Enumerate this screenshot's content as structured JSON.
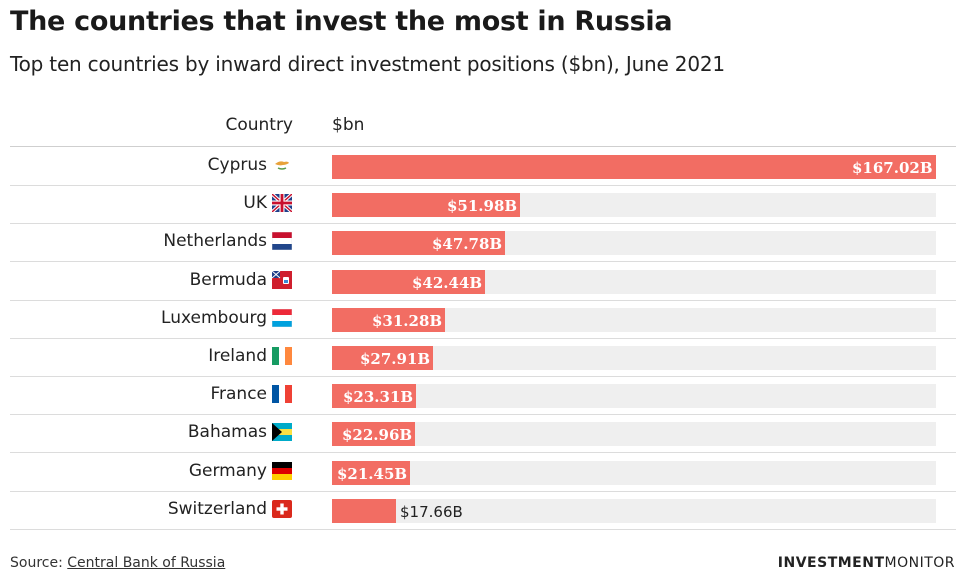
{
  "header": {
    "title": "The countries that invest the most in Russia",
    "subtitle": "Top ten countries by inward direct investment positions ($bn), June 2021",
    "col_country": "Country",
    "col_value": "$bn"
  },
  "footer": {
    "source_prefix": "Source: ",
    "source_link": "Central Bank of Russia",
    "brand_bold": "INVESTMENT",
    "brand_light": "MONITOR"
  },
  "colors": {
    "bar": "#f26d63",
    "track": "#efefef"
  },
  "chart_data": {
    "type": "bar",
    "orientation": "horizontal",
    "title": "The countries that invest the most in Russia",
    "subtitle": "Top ten countries by inward direct investment positions ($bn), June 2021",
    "xlabel": "$bn",
    "ylabel": "Country",
    "xlim": [
      0,
      167.02
    ],
    "grid": false,
    "categories": [
      "Cyprus",
      "UK",
      "Netherlands",
      "Bermuda",
      "Luxembourg",
      "Ireland",
      "France",
      "Bahamas",
      "Germany",
      "Switzerland"
    ],
    "values": [
      167.02,
      51.98,
      47.78,
      42.44,
      31.28,
      27.91,
      23.31,
      22.96,
      21.45,
      17.66
    ],
    "labels": [
      "$167.02B",
      "$51.98B",
      "$47.78B",
      "$42.44B",
      "$31.28B",
      "$27.91B",
      "$23.31B",
      "$22.96B",
      "$21.45B",
      "$17.66B"
    ],
    "flags": [
      "cyprus-flag-icon",
      "uk-flag-icon",
      "netherlands-flag-icon",
      "bermuda-flag-icon",
      "luxembourg-flag-icon",
      "ireland-flag-icon",
      "france-flag-icon",
      "bahamas-flag-icon",
      "germany-flag-icon",
      "switzerland-flag-icon"
    ]
  }
}
